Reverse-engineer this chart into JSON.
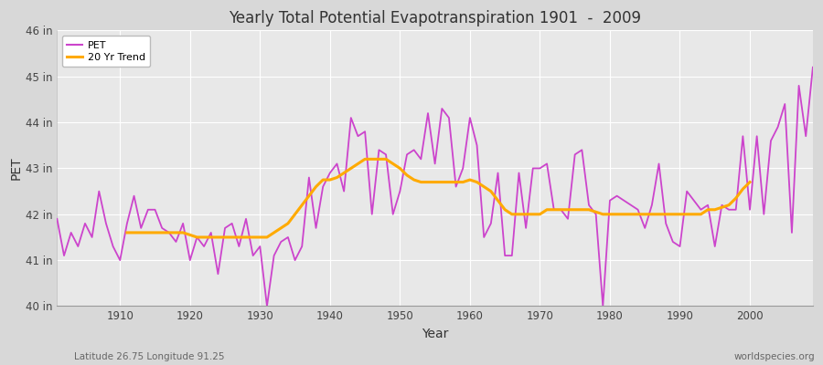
{
  "title": "Yearly Total Potential Evapotranspiration 1901  -  2009",
  "xlabel": "Year",
  "ylabel": "PET",
  "subtitle_left": "Latitude 26.75 Longitude 91.25",
  "subtitle_right": "worldspecies.org",
  "ylim": [
    40,
    46
  ],
  "ytick_labels": [
    "40 in",
    "41 in",
    "42 in",
    "43 in",
    "44 in",
    "45 in",
    "46 in"
  ],
  "ytick_values": [
    40,
    41,
    42,
    43,
    44,
    45,
    46
  ],
  "xtick_values": [
    1910,
    1920,
    1930,
    1940,
    1950,
    1960,
    1970,
    1980,
    1990,
    2000
  ],
  "pet_color": "#cc44cc",
  "trend_color": "#ffaa00",
  "fig_bg_color": "#d8d8d8",
  "plot_bg_color": "#e8e8e8",
  "grid_color": "#ffffff",
  "years": [
    1901,
    1902,
    1903,
    1904,
    1905,
    1906,
    1907,
    1908,
    1909,
    1910,
    1911,
    1912,
    1913,
    1914,
    1915,
    1916,
    1917,
    1918,
    1919,
    1920,
    1921,
    1922,
    1923,
    1924,
    1925,
    1926,
    1927,
    1928,
    1929,
    1930,
    1931,
    1932,
    1933,
    1934,
    1935,
    1936,
    1937,
    1938,
    1939,
    1940,
    1941,
    1942,
    1943,
    1944,
    1945,
    1946,
    1947,
    1948,
    1949,
    1950,
    1951,
    1952,
    1953,
    1954,
    1955,
    1956,
    1957,
    1958,
    1959,
    1960,
    1961,
    1962,
    1963,
    1964,
    1965,
    1966,
    1967,
    1968,
    1969,
    1970,
    1971,
    1972,
    1973,
    1974,
    1975,
    1976,
    1977,
    1978,
    1979,
    1980,
    1981,
    1982,
    1983,
    1984,
    1985,
    1986,
    1987,
    1988,
    1989,
    1990,
    1991,
    1992,
    1993,
    1994,
    1995,
    1996,
    1997,
    1998,
    1999,
    2000,
    2001,
    2002,
    2003,
    2004,
    2005,
    2006,
    2007,
    2008,
    2009
  ],
  "pet_values": [
    41.9,
    41.1,
    41.6,
    41.3,
    41.8,
    41.5,
    42.5,
    41.8,
    41.3,
    41.0,
    41.8,
    42.4,
    41.7,
    42.1,
    42.1,
    41.7,
    41.6,
    41.4,
    41.8,
    41.0,
    41.5,
    41.3,
    41.6,
    40.7,
    41.7,
    41.8,
    41.3,
    41.9,
    41.1,
    41.3,
    40.0,
    41.1,
    41.4,
    41.5,
    41.0,
    41.3,
    42.8,
    41.7,
    42.6,
    42.9,
    43.1,
    42.5,
    44.1,
    43.7,
    43.8,
    42.0,
    43.4,
    43.3,
    42.0,
    42.5,
    43.3,
    43.4,
    43.2,
    44.2,
    43.1,
    44.3,
    44.1,
    42.6,
    43.0,
    44.1,
    43.5,
    41.5,
    41.8,
    42.9,
    41.1,
    41.1,
    42.9,
    41.7,
    43.0,
    43.0,
    43.1,
    42.1,
    42.1,
    41.9,
    43.3,
    43.4,
    42.2,
    42.0,
    40.0,
    42.3,
    42.4,
    42.3,
    42.2,
    42.1,
    41.7,
    42.2,
    43.1,
    41.8,
    41.4,
    41.3,
    42.5,
    42.3,
    42.1,
    42.2,
    41.3,
    42.2,
    42.1,
    42.1,
    43.7,
    42.1,
    43.7,
    42.0,
    43.6,
    43.9,
    44.4,
    41.6,
    44.8,
    43.7,
    45.2
  ],
  "trend_values": [
    null,
    null,
    null,
    null,
    null,
    null,
    null,
    null,
    null,
    null,
    41.6,
    41.6,
    41.6,
    41.6,
    41.6,
    41.6,
    41.6,
    41.6,
    41.6,
    41.55,
    41.5,
    41.5,
    41.5,
    41.5,
    41.5,
    41.5,
    41.5,
    41.5,
    41.5,
    41.5,
    41.5,
    41.6,
    41.7,
    41.8,
    42.0,
    42.2,
    42.4,
    42.6,
    42.75,
    42.75,
    42.8,
    42.9,
    43.0,
    43.1,
    43.2,
    43.2,
    43.2,
    43.2,
    43.1,
    43.0,
    42.85,
    42.75,
    42.7,
    42.7,
    42.7,
    42.7,
    42.7,
    42.7,
    42.7,
    42.75,
    42.7,
    42.6,
    42.5,
    42.3,
    42.1,
    42.0,
    42.0,
    42.0,
    42.0,
    42.0,
    42.1,
    42.1,
    42.1,
    42.1,
    42.1,
    42.1,
    42.1,
    42.05,
    42.0,
    42.0,
    42.0,
    42.0,
    42.0,
    42.0,
    42.0,
    42.0,
    42.0,
    42.0,
    42.0,
    42.0,
    42.0,
    42.0,
    42.0,
    42.1,
    42.1,
    42.15,
    42.2,
    42.35,
    42.55,
    42.7,
    null,
    null,
    null,
    null,
    null,
    null,
    null,
    null,
    null
  ]
}
